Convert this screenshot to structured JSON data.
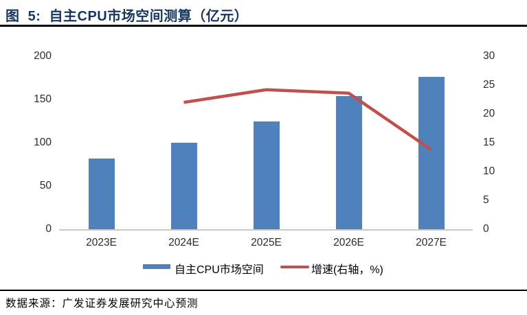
{
  "figure": {
    "title": "图  5:  自主CPU市场空间测算（亿元）",
    "source": "数据来源：广发证券发展研究中心预测"
  },
  "colors": {
    "bar": "#4F81BD",
    "line": "#C0504D",
    "title_text": "#17365D",
    "axis_line": "#C9C9C9",
    "tick_text": "#2B2B2B"
  },
  "chart_data": {
    "type": "bar",
    "title": "自主CPU市场空间测算（亿元）",
    "categories": [
      "2023E",
      "2024E",
      "2025E",
      "2026E",
      "2027E"
    ],
    "series": [
      {
        "name": "自主CPU市场空间",
        "type": "bar",
        "axis": "left",
        "values": [
          82,
          100,
          125,
          154,
          176
        ]
      },
      {
        "name": "增速(右轴，%)",
        "type": "line",
        "axis": "right",
        "values": [
          null,
          22,
          24.2,
          23.6,
          13.8
        ]
      }
    ],
    "left_axis": {
      "range": [
        0,
        200
      ],
      "ticks": [
        0,
        50,
        100,
        150,
        200
      ]
    },
    "right_axis": {
      "range": [
        0,
        30
      ],
      "ticks": [
        0,
        5,
        10,
        15,
        20,
        25,
        30
      ]
    },
    "grid": false,
    "legend_position": "bottom",
    "xlabel": "",
    "ylabel": ""
  }
}
